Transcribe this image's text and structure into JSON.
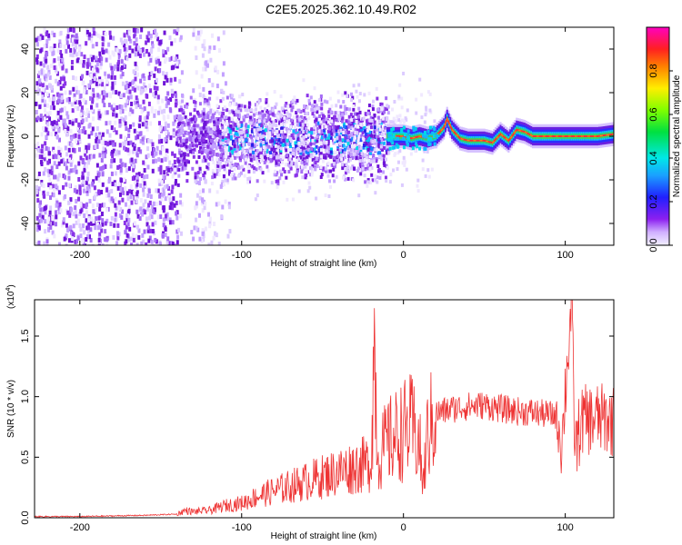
{
  "title": "C2E5.2025.362.10.49.R02",
  "chart_data": [
    {
      "type": "heatmap",
      "xlabel": "Height of straight line (km)",
      "ylabel": "Frequency (Hz)",
      "xlim": [
        -228,
        130
      ],
      "ylim": [
        -50,
        50
      ],
      "xticks": [
        -200,
        -100,
        0,
        100
      ],
      "yticks": [
        -40,
        -20,
        0,
        20,
        40
      ],
      "colorbar": {
        "label": "Normalized spectral amplitude",
        "ticks": [
          "0.0",
          "0.2",
          "0.4",
          "0.6",
          "0.8"
        ],
        "tick_values": [
          0,
          0.2,
          0.4,
          0.6,
          0.8
        ],
        "range": [
          0,
          1
        ]
      },
      "centerline": {
        "x": [
          -10,
          0,
          5,
          10,
          15,
          20,
          25,
          27,
          30,
          35,
          40,
          45,
          50,
          55,
          60,
          65,
          70,
          75,
          80,
          90,
          100,
          110,
          120,
          130
        ],
        "y": [
          0,
          0,
          -1,
          0,
          -1,
          0,
          4,
          8,
          3,
          -1,
          -2,
          -2,
          -2,
          -3,
          1,
          -2,
          3,
          2,
          0,
          0,
          0,
          0,
          0,
          1
        ]
      }
    },
    {
      "type": "line",
      "xlabel": "Height of straight line (km)",
      "ylabel": "SNR (10 * v/v)",
      "yscale_label": "(x10",
      "yscale_exp": "4",
      "yscale_close": ")",
      "xlim": [
        -228,
        130
      ],
      "ylim": [
        0,
        1.8
      ],
      "xticks": [
        -200,
        -100,
        0,
        100
      ],
      "yticks": [
        "0.0",
        "0.5",
        "1.0",
        "1.5"
      ],
      "ytick_values": [
        0,
        0.5,
        1.0,
        1.5
      ],
      "series": [
        {
          "color": "#ee3333",
          "x": [
            -228,
            -200,
            -160,
            -140,
            -135,
            -130,
            -120,
            -110,
            -100,
            -90,
            -80,
            -70,
            -60,
            -50,
            -40,
            -30,
            -20,
            -18,
            -16,
            -10,
            0,
            5,
            10,
            12,
            15,
            20,
            30,
            40,
            50,
            60,
            70,
            80,
            90,
            95,
            98,
            100,
            104,
            106,
            110,
            120,
            130
          ],
          "y": [
            0.01,
            0.01,
            0.02,
            0.03,
            0.06,
            0.05,
            0.06,
            0.1,
            0.12,
            0.18,
            0.22,
            0.26,
            0.3,
            0.34,
            0.38,
            0.42,
            0.45,
            1.47,
            0.5,
            0.62,
            0.72,
            0.75,
            0.6,
            0.25,
            0.7,
            0.86,
            0.9,
            0.92,
            0.93,
            0.9,
            0.88,
            0.87,
            0.85,
            0.85,
            0.6,
            1.05,
            1.78,
            0.55,
            0.8,
            0.82,
            0.8
          ]
        }
      ]
    }
  ]
}
